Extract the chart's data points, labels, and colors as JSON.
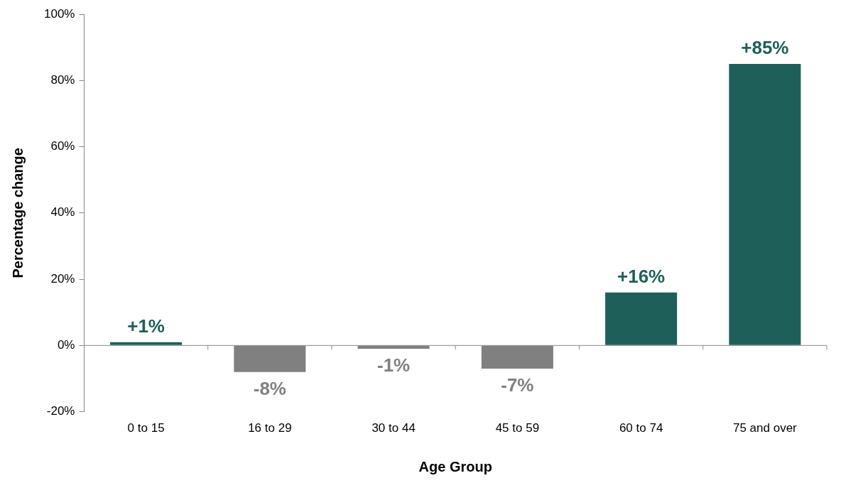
{
  "chart_data": {
    "type": "bar",
    "xlabel": "Age Group",
    "ylabel": "Percentage change",
    "categories": [
      "0 to 15",
      "16 to 29",
      "30 to 44",
      "45 to 59",
      "60 to 74",
      "75 and over"
    ],
    "values": [
      1,
      -8,
      -1,
      -7,
      16,
      85
    ],
    "colors": [
      "#1e6059",
      "#808080",
      "#808080",
      "#808080",
      "#1e6059",
      "#1e6059"
    ],
    "value_labels": [
      "+1%",
      "-8%",
      "-1%",
      "-7%",
      "+16%",
      "+85%"
    ],
    "ylim": [
      -20,
      100
    ],
    "yticks": [
      {
        "value": -20,
        "label": "-20%"
      },
      {
        "value": 0,
        "label": "0%"
      },
      {
        "value": 20,
        "label": "20%"
      },
      {
        "value": 40,
        "label": "40%"
      },
      {
        "value": 60,
        "label": "60%"
      },
      {
        "value": 80,
        "label": "80%"
      },
      {
        "value": 100,
        "label": "100%"
      }
    ],
    "legend": false
  }
}
